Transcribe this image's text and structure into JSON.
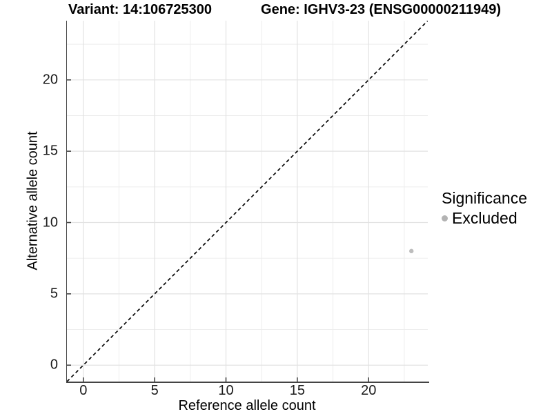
{
  "chart_data": {
    "type": "scatter",
    "title_left": "Variant: 14:106725300",
    "title_right": "Gene: IGHV3-23 (ENSG00000211949)",
    "xlabel": "Reference allele count",
    "ylabel": "Alternative allele count",
    "xlim": [
      -1.15,
      24.15
    ],
    "ylim": [
      -1.15,
      24.15
    ],
    "x_ticks": [
      0,
      5,
      10,
      15,
      20
    ],
    "y_ticks": [
      0,
      5,
      10,
      15,
      20
    ],
    "x_tick_labels": [
      "0",
      "5",
      "10",
      "15",
      "20"
    ],
    "y_tick_labels": [
      "0",
      "5",
      "10",
      "15",
      "20"
    ],
    "x_minor_ticks": [
      2.5,
      7.5,
      12.5,
      17.5,
      22.5
    ],
    "y_minor_ticks": [
      2.5,
      7.5,
      12.5,
      17.5,
      22.5
    ],
    "grid": true,
    "points": [
      {
        "x": 23,
        "y": 8,
        "series": "Excluded"
      }
    ],
    "reference_line": {
      "slope": 1,
      "intercept": 0,
      "style": "dashed"
    },
    "legend": {
      "title": "Significance",
      "position": "right",
      "items": [
        {
          "label": "Excluded",
          "color": "#b9b9b9"
        }
      ]
    }
  },
  "colors": {
    "background": "#ffffff",
    "axis_line": "#444444",
    "tick_text": "#1a1a1a",
    "title_text": "#000000",
    "grid_major": "#e2e2e2",
    "grid_minor": "#ededed",
    "dashed_line": "#111111",
    "point_fill": "#bdbdbd",
    "legend_dot": "#b3b3b3"
  }
}
